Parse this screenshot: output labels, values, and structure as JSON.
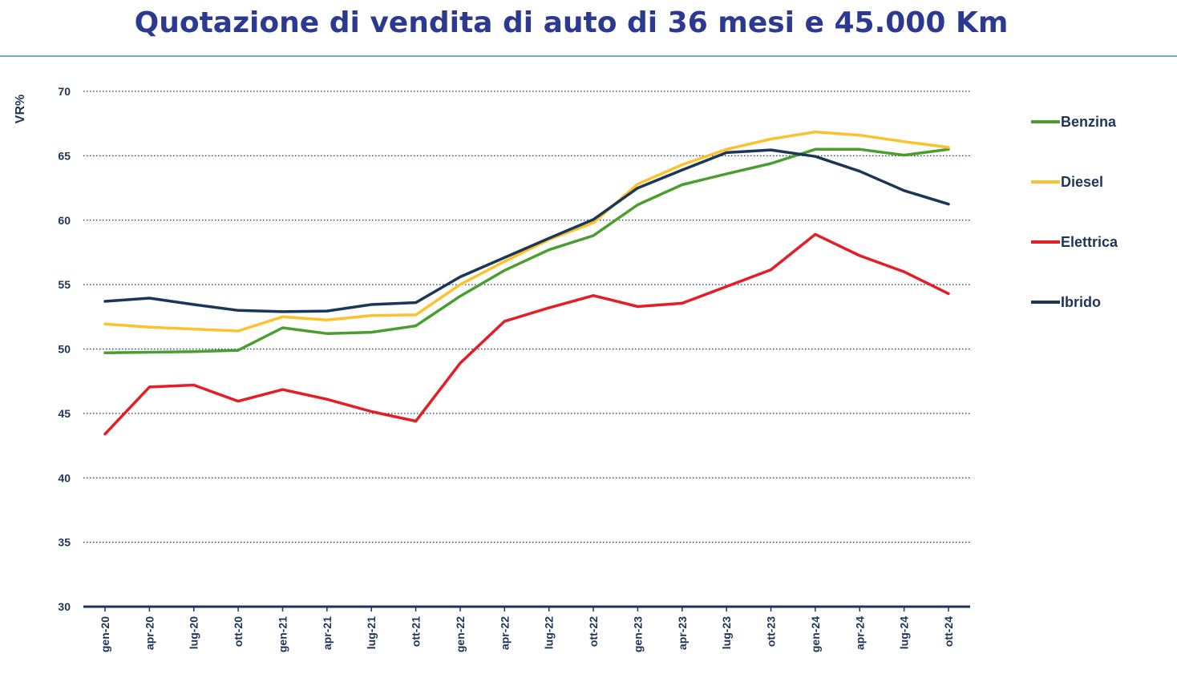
{
  "title": "Quotazione di vendita di auto di 36 mesi e 45.000 Km",
  "chart_data": {
    "type": "line",
    "title": "Quotazione di vendita di auto di 36 mesi e 45.000 Km",
    "xlabel": "",
    "ylabel": "VR%",
    "ylim": [
      30,
      70
    ],
    "yticks": [
      30,
      35,
      40,
      45,
      50,
      55,
      60,
      65,
      70
    ],
    "grid": true,
    "legend_position": "right",
    "categories": [
      "gen-20",
      "apr-20",
      "lug-20",
      "ott-20",
      "gen-21",
      "apr-21",
      "lug-21",
      "ott-21",
      "gen-22",
      "apr-22",
      "lug-22",
      "ott-22",
      "gen-23",
      "apr-23",
      "lug-23",
      "ott-23",
      "gen-24",
      "apr-24",
      "lug-24",
      "ott-24"
    ],
    "series": [
      {
        "name": "Benzina",
        "color": "#4a9e2f",
        "values": [
          49.7,
          49.75,
          49.8,
          49.9,
          51.65,
          51.2,
          51.3,
          51.8,
          54.1,
          56.1,
          57.7,
          58.8,
          61.2,
          62.75,
          63.6,
          64.4,
          65.5,
          65.5,
          65.05,
          65.5
        ]
      },
      {
        "name": "Diesel",
        "color": "#fdc22b",
        "values": [
          51.95,
          51.7,
          51.55,
          51.4,
          52.5,
          52.25,
          52.6,
          52.65,
          55.0,
          56.8,
          58.5,
          59.8,
          62.8,
          64.3,
          65.5,
          66.3,
          66.85,
          66.6,
          66.1,
          65.65
        ]
      },
      {
        "name": "Elettrica",
        "color": "#e31e24",
        "values": [
          43.4,
          47.05,
          47.2,
          45.95,
          46.85,
          46.1,
          45.15,
          44.4,
          48.9,
          52.15,
          53.2,
          54.15,
          53.3,
          53.55,
          54.85,
          56.15,
          58.9,
          57.25,
          56.0,
          54.3
        ]
      },
      {
        "name": "Ibrido",
        "color": "#1b3657",
        "values": [
          53.7,
          53.95,
          53.45,
          53.0,
          52.9,
          52.95,
          53.45,
          53.6,
          55.6,
          57.1,
          58.6,
          60.05,
          62.5,
          63.9,
          65.25,
          65.45,
          64.95,
          63.8,
          62.3,
          61.25
        ]
      }
    ]
  }
}
